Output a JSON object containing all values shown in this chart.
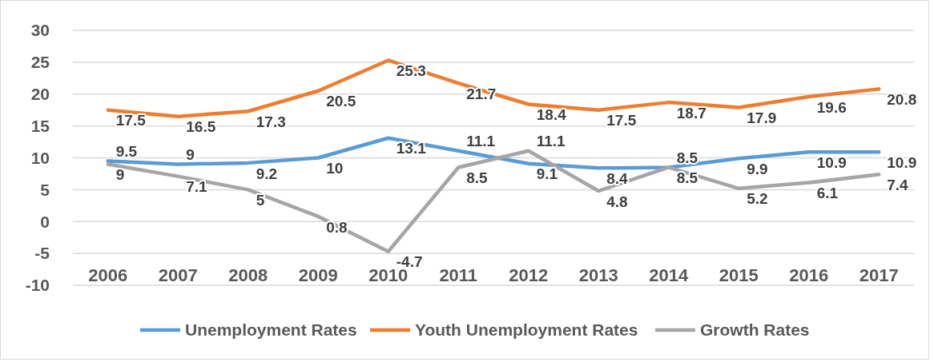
{
  "chart_data": {
    "type": "line",
    "categories": [
      "2006",
      "2007",
      "2008",
      "2009",
      "2010",
      "2011",
      "2012",
      "2013",
      "2014",
      "2015",
      "2016",
      "2017"
    ],
    "series": [
      {
        "name": "Unemployment Rates",
        "color": "#5b9bd5",
        "values": [
          9.5,
          9,
          9.2,
          10,
          13.1,
          11.1,
          9.1,
          8.4,
          8.5,
          9.9,
          10.9,
          10.9
        ]
      },
      {
        "name": "Youth Unemployment Rates",
        "color": "#ed7d31",
        "values": [
          17.5,
          16.5,
          17.3,
          20.5,
          25.3,
          21.7,
          18.4,
          17.5,
          18.7,
          17.9,
          19.6,
          20.8
        ]
      },
      {
        "name": "Growth Rates",
        "color": "#a5a5a5",
        "values": [
          9,
          7.1,
          5,
          0.8,
          -4.7,
          8.5,
          11.1,
          4.8,
          8.5,
          5.2,
          6.1,
          7.4
        ]
      }
    ],
    "ylim": [
      -10,
      30
    ],
    "yticks": [
      -10,
      -5,
      0,
      5,
      10,
      15,
      20,
      25,
      30
    ],
    "grid": "y",
    "legend": "bottom",
    "data_labels": true,
    "marker": "none",
    "line_style": "solid"
  }
}
